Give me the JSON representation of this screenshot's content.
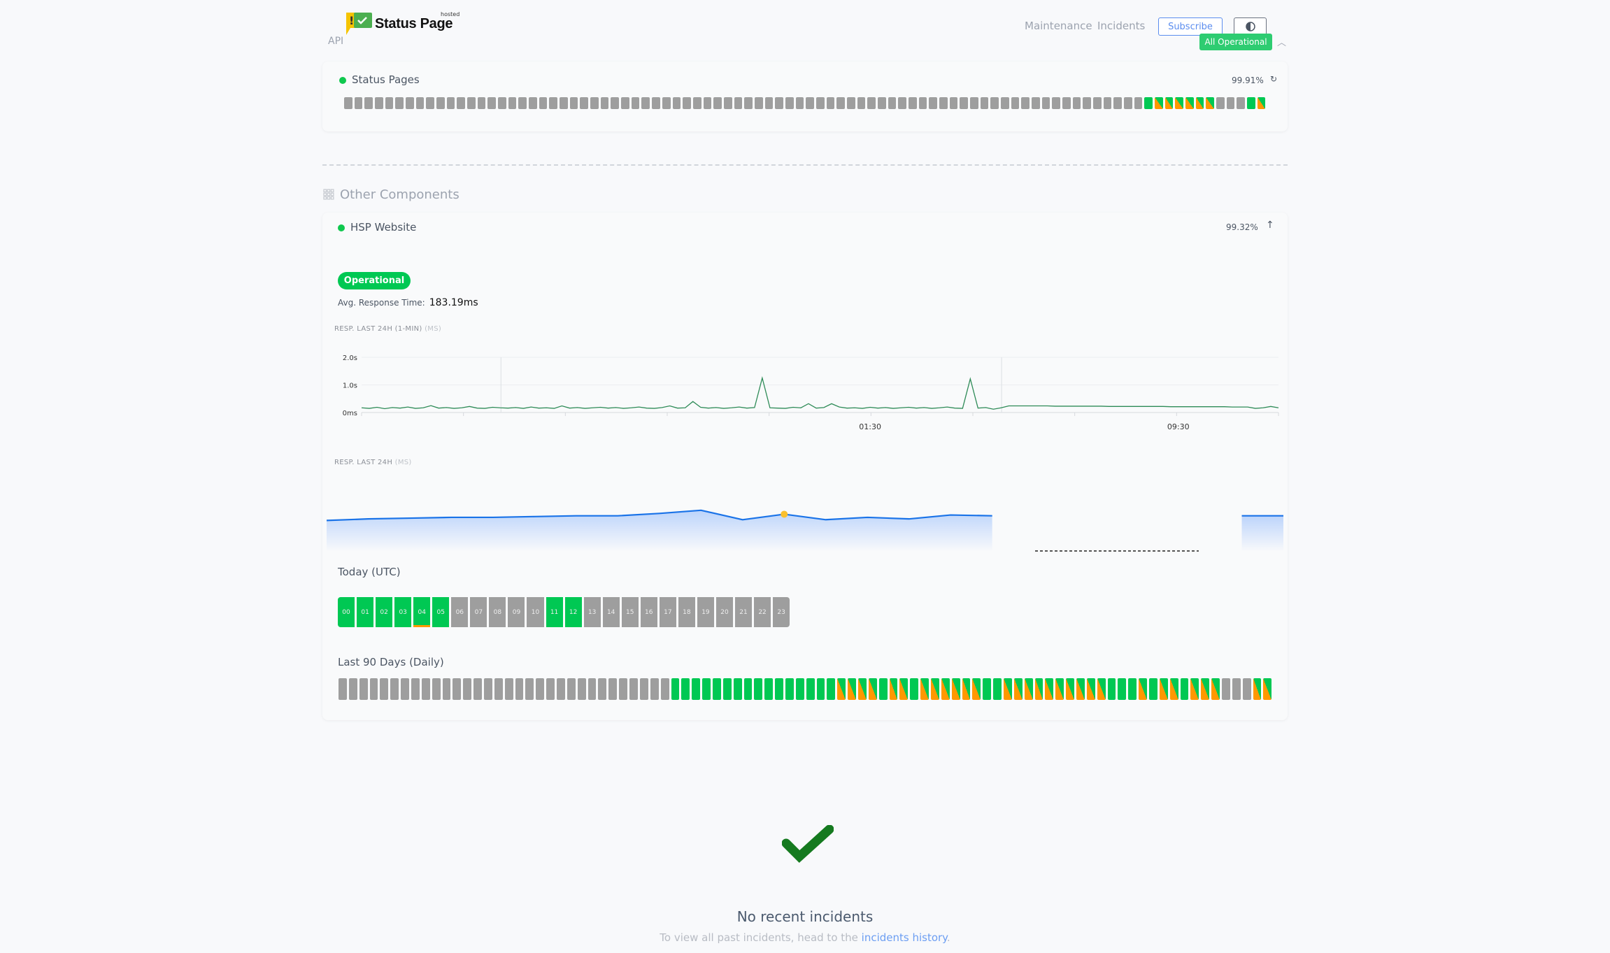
{
  "header": {
    "logo_text": "Status Page",
    "logo_superscript": "hosted",
    "api_label": "API",
    "nav": [
      {
        "label": "Maintenance"
      },
      {
        "label": "Incidents"
      }
    ],
    "subscribe_label": "Subscribe",
    "theme_toggle_icon": "half-circle-contrast-icon",
    "overall_status": "All Operational",
    "collapse_icon": "chevron-up-icon"
  },
  "colors": {
    "operational": "#00c853",
    "partial": "#ff9800",
    "no_data": "#9e9e9e",
    "accent": "#5b8def",
    "chart_line": "#2e8b57",
    "chart2_line": "#1a73e8"
  },
  "api_group": {
    "component": {
      "name": "Status Pages",
      "uptime": "99.91%",
      "icon": "spinner-icon",
      "days": "xxxxxxxxxxxxxxxxxxxxxxxxxxxxxxxxxxxxxxxxxxxxxxxxxxxxxxxxxxxxxxxxxxxxxxxxxxxxxxgssssssxxxgs"
    }
  },
  "other": {
    "title": "Other Components",
    "icon": "grid-icon",
    "component": {
      "name": "HSP Website",
      "uptime": "99.32%",
      "icon": "pin-icon",
      "status": "Operational",
      "avg_label": "Avg. Response Time:",
      "avg_value": "183.19ms",
      "chart1_label": "RESP. LAST 24H (1-MIN)",
      "chart1_unit": "(MS)",
      "chart2_label": "RESP. LAST 24H",
      "chart2_unit": "(MS)",
      "today_label": "Today (UTC)",
      "hours": [
        {
          "label": "00",
          "s": "g"
        },
        {
          "label": "01",
          "s": "g"
        },
        {
          "label": "02",
          "s": "g"
        },
        {
          "label": "03",
          "s": "g"
        },
        {
          "label": "04",
          "s": "w"
        },
        {
          "label": "05",
          "s": "g"
        },
        {
          "label": "06",
          "s": "x"
        },
        {
          "label": "07",
          "s": "x"
        },
        {
          "label": "08",
          "s": "x"
        },
        {
          "label": "09",
          "s": "x"
        },
        {
          "label": "10",
          "s": "x"
        },
        {
          "label": "11",
          "s": "g"
        },
        {
          "label": "12",
          "s": "g"
        },
        {
          "label": "13",
          "s": "x"
        },
        {
          "label": "14",
          "s": "x"
        },
        {
          "label": "15",
          "s": "x"
        },
        {
          "label": "16",
          "s": "x"
        },
        {
          "label": "17",
          "s": "x"
        },
        {
          "label": "18",
          "s": "x"
        },
        {
          "label": "19",
          "s": "x"
        },
        {
          "label": "20",
          "s": "x"
        },
        {
          "label": "21",
          "s": "x"
        },
        {
          "label": "22",
          "s": "x"
        },
        {
          "label": "23",
          "s": "x"
        }
      ],
      "last90_label": "Last 90 Days (Daily)",
      "days": "xxxxxxxxxxxxxxxxxxxxxxxxxxxxxxxxggggggggggggggggssssgssgssssssggssssssssssgggsgssgsssxxxss"
    }
  },
  "chart_data": [
    {
      "type": "line",
      "title": "RESP. LAST 24H (1-MIN) (MS)",
      "ylim": [
        0,
        2.0
      ],
      "y_tick_labels": [
        {
          "label": "0ms",
          "value": 0
        },
        {
          "label": "1.0s",
          "value": 1.0
        },
        {
          "label": "2.0s",
          "value": 2.0
        }
      ],
      "x_tick_labels": [
        {
          "label": "01:30",
          "index": 66
        },
        {
          "label": "09:30",
          "index": 106
        }
      ],
      "grid": true,
      "values": [
        0.17,
        0.15,
        0.19,
        0.14,
        0.18,
        0.16,
        0.2,
        0.15,
        0.17,
        0.25,
        0.16,
        0.18,
        0.15,
        0.17,
        0.22,
        0.16,
        0.15,
        0.19,
        0.17,
        0.16,
        0.18,
        0.15,
        0.2,
        0.16,
        0.17,
        0.15,
        0.24,
        0.16,
        0.18,
        0.15,
        0.17,
        0.19,
        0.16,
        0.18,
        0.15,
        0.17,
        0.2,
        0.16,
        0.15,
        0.18,
        0.24,
        0.16,
        0.17,
        0.4,
        0.19,
        0.16,
        0.18,
        0.15,
        0.17,
        0.2,
        0.16,
        0.18,
        1.25,
        0.17,
        0.16,
        0.15,
        0.19,
        0.17,
        0.32,
        0.16,
        0.18,
        0.32,
        0.2,
        0.16,
        0.17,
        0.15,
        0.19,
        0.16,
        0.18,
        0.15,
        0.17,
        0.19,
        0.16,
        0.18,
        0.15,
        0.17,
        0.2,
        0.16,
        0.15,
        1.22,
        0.16,
        0.18,
        0.12,
        0.17,
        0.24,
        0.24,
        0.24,
        0.24,
        0.24,
        0.24,
        0.23,
        0.23,
        0.23,
        0.23,
        0.23,
        0.23,
        0.23,
        0.22,
        0.22,
        0.22,
        0.22,
        0.22,
        0.22,
        0.22,
        0.22,
        0.21,
        0.21,
        0.21,
        0.21,
        0.21,
        0.21,
        0.21,
        0.21,
        0.2,
        0.2,
        0.2,
        0.15,
        0.17,
        0.22,
        0.17
      ]
    },
    {
      "type": "area",
      "title": "RESP. LAST 24H (MS)",
      "ylim": [
        150,
        200
      ],
      "highlight_index": 11,
      "values": [
        180,
        182,
        183,
        184,
        184,
        185,
        186,
        186,
        189,
        193,
        181,
        188,
        181,
        184,
        182,
        187,
        186,
        null,
        null,
        null,
        null,
        null,
        186,
        186
      ]
    }
  ],
  "incidents": {
    "icon": "checkmark-icon",
    "title": "No recent incidents",
    "text_before": "To view all past incidents, head to the ",
    "link": "incidents history",
    "text_after": "."
  }
}
